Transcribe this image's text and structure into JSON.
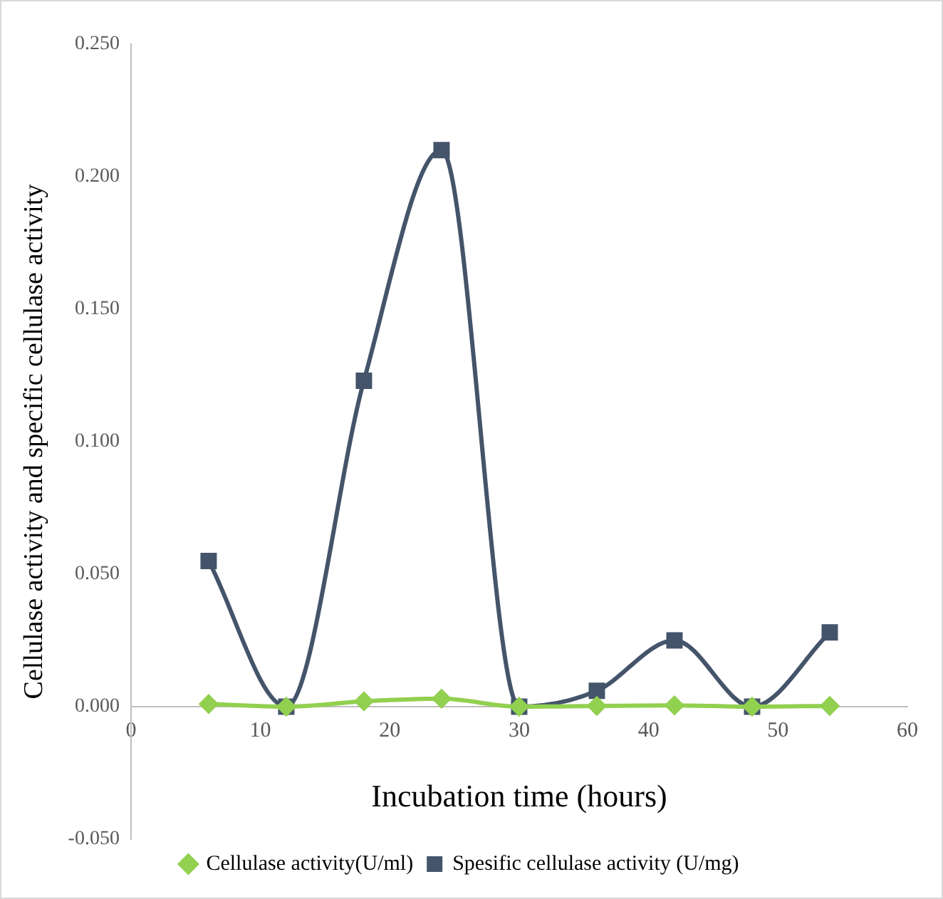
{
  "chart_data": {
    "type": "line",
    "xlabel": "Incubation time (hours)",
    "ylabel": "Cellulase activity and specific cellulase activity",
    "x": [
      6,
      12,
      18,
      24,
      30,
      36,
      42,
      48,
      54
    ],
    "series": [
      {
        "name": "Cellulase activity(U/ml)",
        "color": "#92d050",
        "marker": "diamond",
        "values": [
          0.001,
          0,
          0.002,
          0.003,
          0,
          0.0003,
          0.0005,
          0,
          0.0003
        ]
      },
      {
        "name": "Spesific cellulase activity (U/mg)",
        "color": "#44546a",
        "marker": "square",
        "values": [
          0.055,
          0,
          0.123,
          0.21,
          0,
          0.006,
          0.025,
          0,
          0.028
        ]
      }
    ],
    "xlim": [
      0,
      60
    ],
    "xticks": [
      0,
      10,
      20,
      30,
      40,
      50,
      60
    ],
    "ylim": [
      -0.05,
      0.25
    ],
    "yticks": [
      {
        "value": -0.05,
        "label": "-0.050"
      },
      {
        "value": 0,
        "label": "0.000"
      },
      {
        "value": 0.05,
        "label": "0.050"
      },
      {
        "value": 0.1,
        "label": "0.100"
      },
      {
        "value": 0.15,
        "label": "0.150"
      },
      {
        "value": 0.2,
        "label": "0.200"
      },
      {
        "value": 0.25,
        "label": "0.250"
      }
    ],
    "grid": false,
    "legend": "bottom",
    "line_style": "solid"
  }
}
